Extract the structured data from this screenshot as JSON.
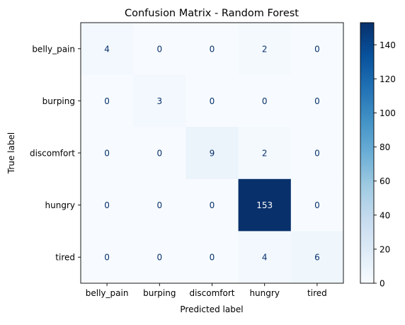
{
  "chart_data": {
    "type": "heatmap",
    "title": "Confusion Matrix - Random Forest",
    "xlabel": "Predicted label",
    "ylabel": "True label",
    "x_categories": [
      "belly_pain",
      "burping",
      "discomfort",
      "hungry",
      "tired"
    ],
    "y_categories": [
      "belly_pain",
      "burping",
      "discomfort",
      "hungry",
      "tired"
    ],
    "values": [
      [
        4,
        0,
        0,
        2,
        0
      ],
      [
        0,
        3,
        0,
        0,
        0
      ],
      [
        0,
        0,
        9,
        2,
        0
      ],
      [
        0,
        0,
        0,
        153,
        0
      ],
      [
        0,
        0,
        0,
        4,
        6
      ]
    ],
    "colormap": "Blues",
    "color_range": [
      0,
      153
    ],
    "colorbar_ticks": [
      0,
      20,
      40,
      60,
      80,
      100,
      120,
      140
    ],
    "low_color": "#f7fbff",
    "high_color": "#08306b"
  }
}
